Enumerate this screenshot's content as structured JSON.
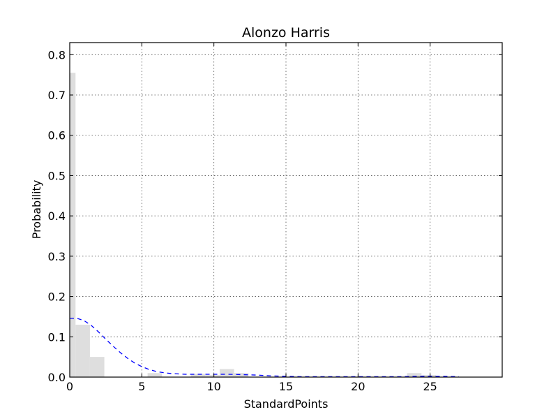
{
  "chart_data": {
    "type": "bar",
    "title": "Alonzo Harris",
    "xlabel": "StandardPoints",
    "ylabel": "Probability",
    "xlim": [
      0,
      30
    ],
    "ylim": [
      0,
      0.83
    ],
    "xticks": [
      0,
      5,
      10,
      15,
      20,
      25
    ],
    "xtick_labels": [
      "0",
      "5",
      "10",
      "15",
      "20",
      "25"
    ],
    "yticks": [
      0.0,
      0.1,
      0.2,
      0.3,
      0.4,
      0.5,
      0.6,
      0.7,
      0.8
    ],
    "ytick_labels": [
      "0.0",
      "0.1",
      "0.2",
      "0.3",
      "0.4",
      "0.5",
      "0.6",
      "0.7",
      "0.8"
    ],
    "grid": true,
    "histogram": {
      "bins": [
        {
          "x0": 0.0,
          "x1": 0.4,
          "value": 0.755
        },
        {
          "x0": 0.4,
          "x1": 1.4,
          "value": 0.13
        },
        {
          "x0": 1.4,
          "x1": 2.4,
          "value": 0.05
        },
        {
          "x0": 5.4,
          "x1": 6.4,
          "value": 0.01
        },
        {
          "x0": 8.4,
          "x1": 9.4,
          "value": 0.008
        },
        {
          "x0": 9.4,
          "x1": 10.4,
          "value": 0.005
        },
        {
          "x0": 10.4,
          "x1": 11.4,
          "value": 0.02
        },
        {
          "x0": 11.4,
          "x1": 12.4,
          "value": 0.01
        },
        {
          "x0": 23.4,
          "x1": 24.4,
          "value": 0.01
        },
        {
          "x0": 24.4,
          "x1": 25.4,
          "value": 0.005
        }
      ]
    },
    "kde": {
      "x": [
        0,
        0.5,
        1,
        1.5,
        2,
        2.5,
        3,
        3.5,
        4,
        4.5,
        5,
        5.5,
        6,
        6.5,
        7,
        8,
        9,
        10,
        11,
        12,
        13,
        14,
        15,
        16,
        17,
        18,
        19,
        20,
        21,
        22,
        23,
        24,
        25,
        26,
        27
      ],
      "y": [
        0.146,
        0.146,
        0.14,
        0.128,
        0.112,
        0.094,
        0.077,
        0.061,
        0.047,
        0.035,
        0.026,
        0.019,
        0.014,
        0.011,
        0.009,
        0.007,
        0.007,
        0.007,
        0.007,
        0.006,
        0.005,
        0.003,
        0.002,
        0.001,
        0.001,
        0.001,
        0.001,
        0.001,
        0.001,
        0.001,
        0.001,
        0.002,
        0.002,
        0.002,
        0.001
      ]
    },
    "colors": {
      "bars": "#dedede",
      "kde": "#0000ff"
    }
  }
}
